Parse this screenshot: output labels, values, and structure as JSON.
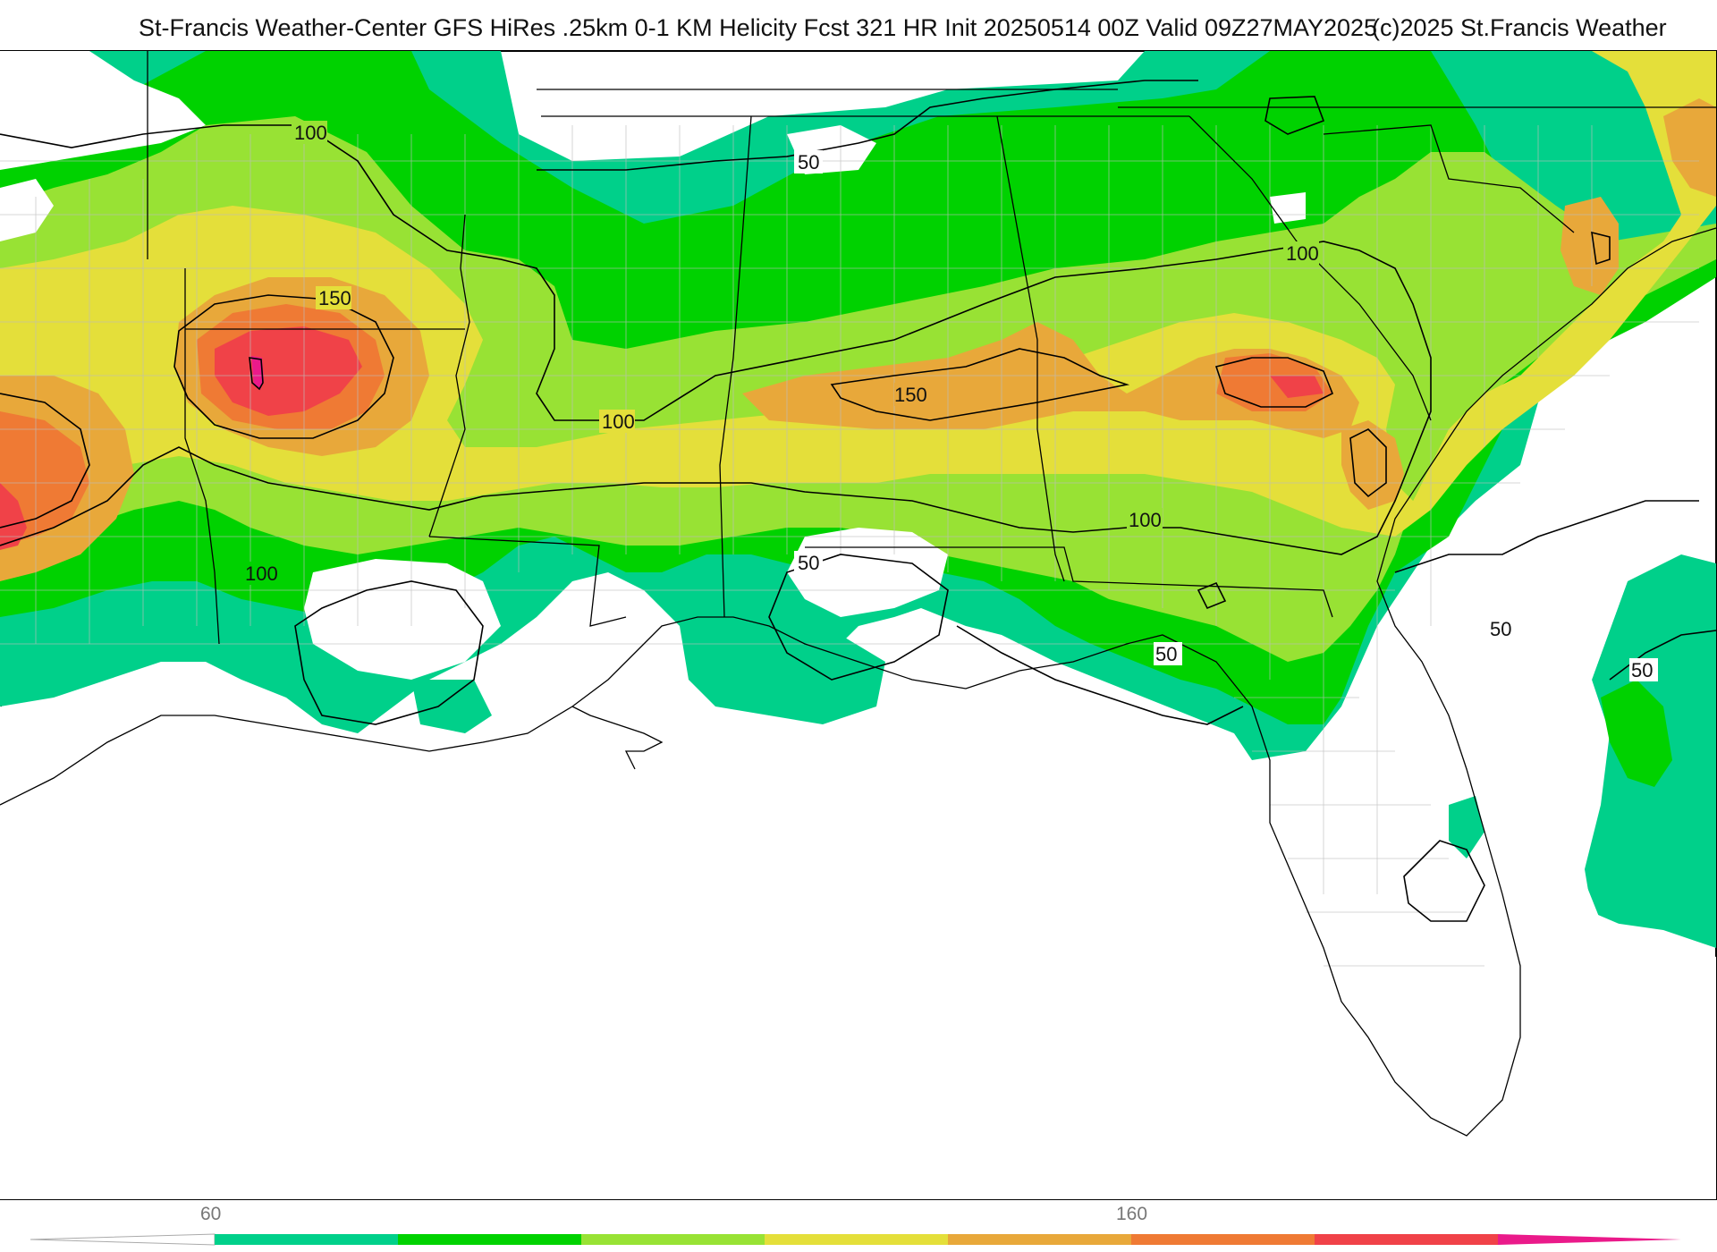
{
  "header": {
    "title": "St-Francis Weather-Center GFS HiRes .25km 0-1 KM Helicity Fcst 321 HR Init 20250514 00Z  Valid 09Z27MAY2025",
    "copyright": "(c)2025 St.Francis Weather"
  },
  "map": {
    "contour_labels": [
      "100",
      "150",
      "50",
      "150",
      "100",
      "100",
      "100",
      "100",
      "50",
      "50",
      "50",
      "50"
    ]
  },
  "colorbar": {
    "tick_labels": [
      "60",
      "160"
    ],
    "colors": [
      "#00d08a",
      "#00d200",
      "#98e234",
      "#e4df3a",
      "#e8a83a",
      "#ef7a34",
      "#f04248",
      "#ea1a8a"
    ]
  },
  "palette": {
    "teal": "#00d08a",
    "green": "#00d200",
    "lime": "#98e234",
    "yellow": "#e4df3a",
    "light-orange": "#e8a83a",
    "orange": "#ef7a34",
    "red": "#f04248",
    "magenta": "#ea1a8a"
  }
}
